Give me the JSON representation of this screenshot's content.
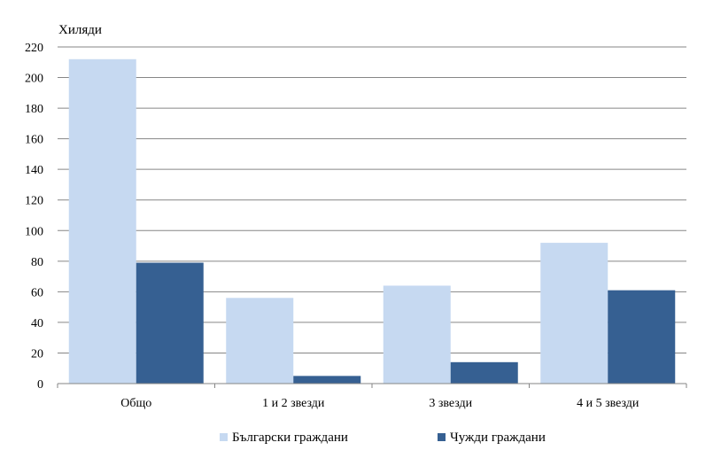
{
  "chart_data": {
    "type": "bar",
    "unit_label": "Хиляди",
    "categories": [
      "Общо",
      "1 и 2 звезди",
      "3 звезди",
      "4 и 5 звезди"
    ],
    "series": [
      {
        "name": "Български граждани",
        "color": "#c6d9f1",
        "values": [
          212,
          56,
          64,
          92
        ]
      },
      {
        "name": "Чужди граждани",
        "color": "#366092",
        "values": [
          79,
          5,
          14,
          61
        ]
      }
    ],
    "y_ticks": [
      0,
      20,
      40,
      60,
      80,
      100,
      120,
      140,
      160,
      180,
      200,
      220
    ],
    "ylim": [
      0,
      220
    ],
    "grid": true,
    "legend_position": "bottom"
  }
}
